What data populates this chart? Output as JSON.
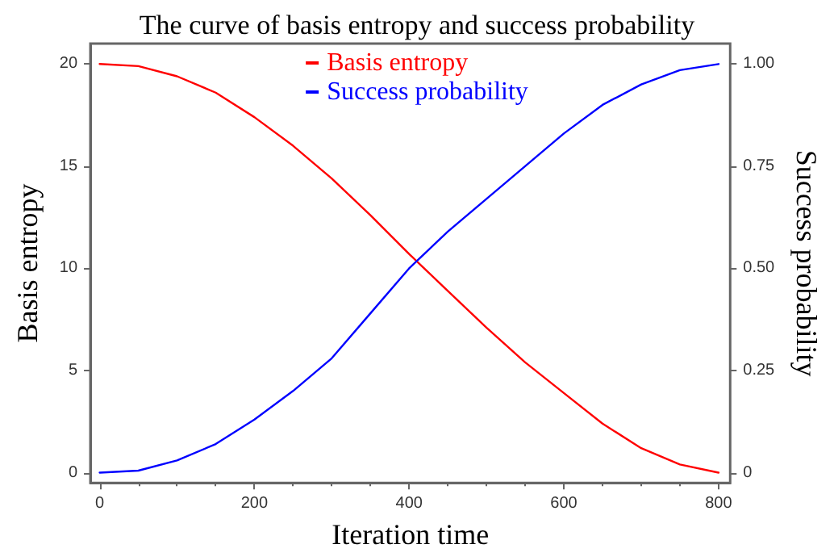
{
  "chart_data": {
    "type": "line",
    "title": "The curve of basis entropy and success probability",
    "xlabel": "Iteration time",
    "ylabel": "Basis entropy",
    "y2label": "Success probability",
    "x": [
      0,
      50,
      100,
      150,
      200,
      250,
      300,
      350,
      400,
      450,
      500,
      550,
      600,
      650,
      700,
      750,
      800
    ],
    "series": [
      {
        "name": "Basis entropy",
        "color": "#ff0000",
        "values": [
          20,
          19.9,
          19.4,
          18.6,
          17.4,
          16,
          14.4,
          12.6,
          10.7,
          8.9,
          7.1,
          5.4,
          3.9,
          2.4,
          1.2,
          0.4,
          0
        ]
      },
      {
        "name": "Success probability",
        "color": "#0000ff",
        "axis": "y2",
        "values": [
          0,
          0.005,
          0.03,
          0.07,
          0.13,
          0.2,
          0.28,
          0.39,
          0.5,
          0.59,
          0.67,
          0.75,
          0.83,
          0.9,
          0.95,
          0.985,
          1
        ]
      }
    ],
    "xlim": [
      -12,
      815
    ],
    "xticks": [
      0,
      200,
      400,
      600,
      800
    ],
    "ylim": [
      -0.5,
      21
    ],
    "yticks": [
      0,
      5,
      10,
      15,
      20
    ],
    "y2lim": [
      -0.025,
      1.05
    ],
    "y2ticks": [
      {
        "value": 0,
        "label": "0"
      },
      {
        "value": 0.25,
        "label": "0.25"
      },
      {
        "value": 0.5,
        "label": "0.50"
      },
      {
        "value": 0.75,
        "label": "0.75"
      },
      {
        "value": 1,
        "label": "1.00"
      }
    ],
    "legend": "top",
    "grid": false,
    "marker": "none",
    "line_style": "solid"
  }
}
